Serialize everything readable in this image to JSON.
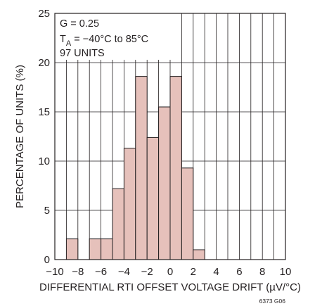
{
  "chart_data": {
    "type": "bar",
    "subtype": "histogram",
    "bin_width": 1,
    "bins": [
      {
        "x0": -9,
        "x1": -8,
        "value": 2.1
      },
      {
        "x0": -8,
        "x1": -7,
        "value": 0
      },
      {
        "x0": -7,
        "x1": -6,
        "value": 2.1
      },
      {
        "x0": -6,
        "x1": -5,
        "value": 2.1
      },
      {
        "x0": -5,
        "x1": -4,
        "value": 7.2
      },
      {
        "x0": -4,
        "x1": -3,
        "value": 11.3
      },
      {
        "x0": -3,
        "x1": -2,
        "value": 18.6
      },
      {
        "x0": -2,
        "x1": -1,
        "value": 12.4
      },
      {
        "x0": -1,
        "x1": 0,
        "value": 15.5
      },
      {
        "x0": 0,
        "x1": 1,
        "value": 18.6
      },
      {
        "x0": 1,
        "x1": 2,
        "value": 9.3
      },
      {
        "x0": 2,
        "x1": 3,
        "value": 1.0
      }
    ],
    "xlim": [
      -10,
      10
    ],
    "ylim": [
      0,
      25
    ],
    "x_ticks": [
      -10,
      -8,
      -6,
      -4,
      -2,
      0,
      2,
      4,
      6,
      8,
      10
    ],
    "x_tick_labels": [
      "−10",
      "−8",
      "−6",
      "−4",
      "−2",
      "0",
      "2",
      "4",
      "6",
      "8",
      "10"
    ],
    "y_ticks": [
      0,
      5,
      10,
      15,
      20,
      25
    ],
    "y_tick_labels": [
      "0",
      "5",
      "10",
      "15",
      "20",
      "25"
    ],
    "xlabel": "DIFFERENTIAL RTI OFFSET VOLTAGE DRIFT (µV/°C)",
    "ylabel": "PERCENTAGE OF UNITS (%)",
    "grid": true,
    "annotations": {
      "line1": "G = 0.25",
      "line2_prefix": "T",
      "line2_sub": "A",
      "line2_rest": " = −40°C to 85°C",
      "line3": "97 UNITS"
    },
    "figure_id": "6373 G06",
    "colors": {
      "bar_fill": "#e6c1bb",
      "bar_stroke": "#231f20",
      "grid": "#231f20",
      "text": "#231f20"
    }
  }
}
